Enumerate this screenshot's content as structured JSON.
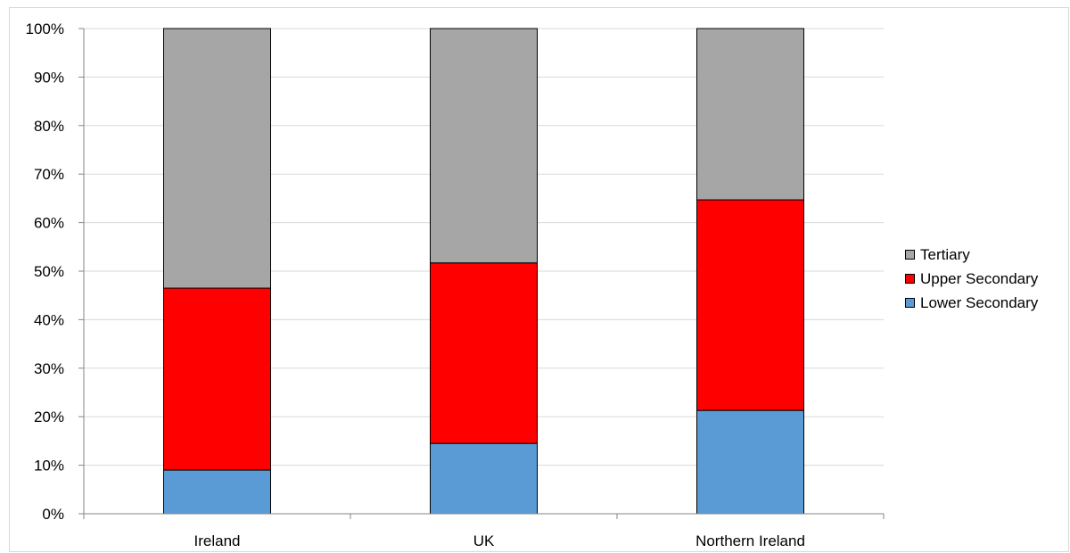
{
  "chart_data": {
    "type": "bar",
    "stacked": true,
    "percent_stacked": true,
    "categories": [
      "Ireland",
      "UK",
      "Northern Ireland"
    ],
    "series": [
      {
        "name": "Lower Secondary",
        "color": "#5b9bd5",
        "values": [
          9.0,
          14.5,
          21.3
        ]
      },
      {
        "name": "Upper Secondary",
        "color": "#ff0000",
        "values": [
          37.5,
          37.2,
          43.4
        ]
      },
      {
        "name": "Tertiary",
        "color": "#a6a6a6",
        "values": [
          53.5,
          48.3,
          35.3
        ]
      }
    ],
    "ylim": [
      0,
      100
    ],
    "yticks": [
      "0%",
      "10%",
      "20%",
      "30%",
      "40%",
      "50%",
      "60%",
      "70%",
      "80%",
      "90%",
      "100%"
    ],
    "grid": true,
    "legend_position": "right"
  }
}
